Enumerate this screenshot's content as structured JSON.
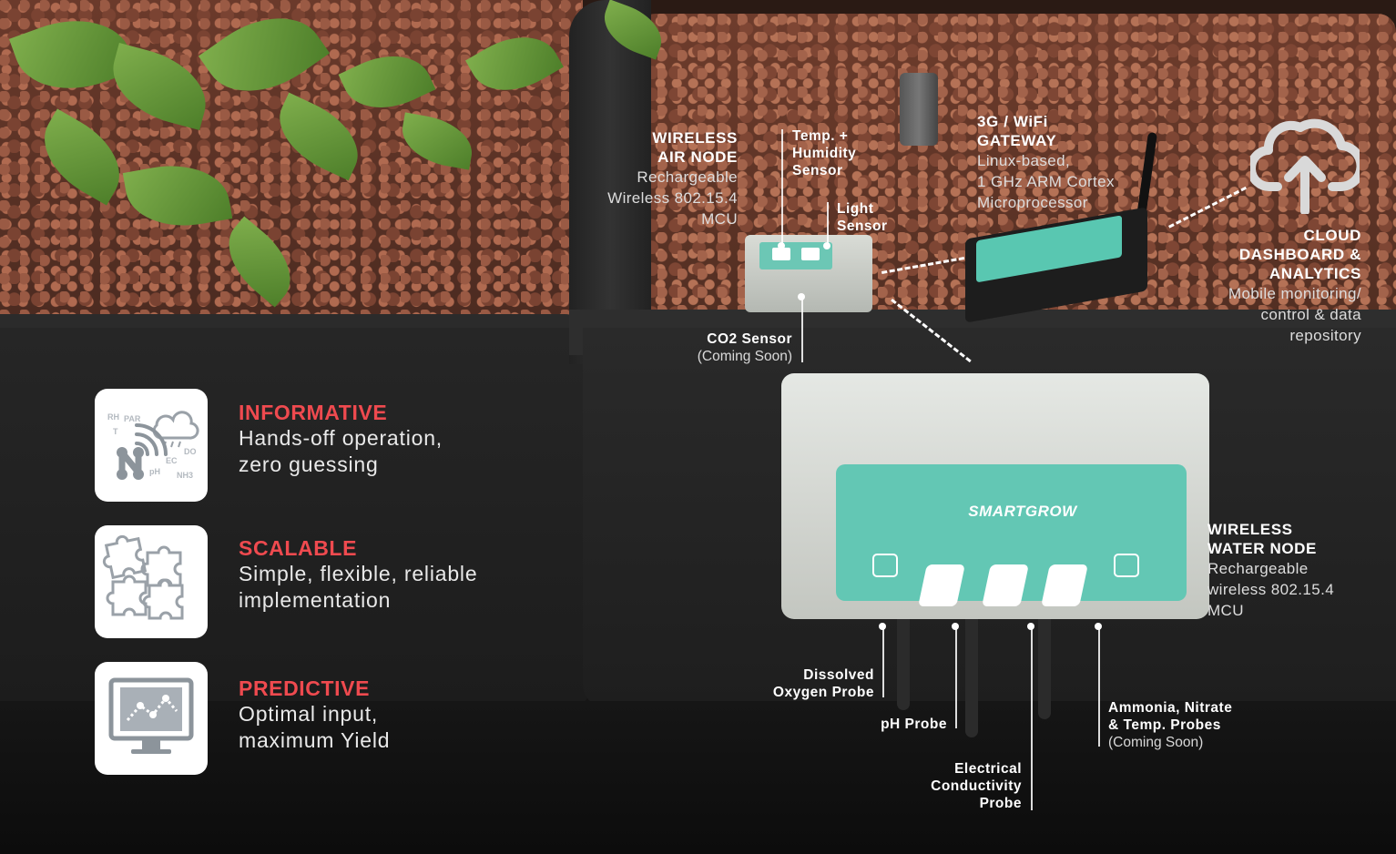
{
  "features": [
    {
      "title": "INFORMATIVE",
      "line1": "Hands-off operation,",
      "line2": "zero guessing",
      "icon": "sensor-network-icon",
      "icon_labels": [
        "RH",
        "PAR",
        "T",
        "DO",
        "EC",
        "pH",
        "NH3"
      ]
    },
    {
      "title": "SCALABLE",
      "line1": "Simple, flexible, reliable",
      "line2": "implementation",
      "icon": "puzzle-icon"
    },
    {
      "title": "PREDICTIVE",
      "line1": "Optimal input,",
      "line2": "maximum Yield",
      "icon": "monitor-chart-icon"
    }
  ],
  "air_node": {
    "title1": "WIRELESS",
    "title2": "AIR NODE",
    "line1": "Rechargeable",
    "line2": "Wireless 802.15.4",
    "line3": "MCU"
  },
  "temp_sensor": {
    "line1": "Temp. +",
    "line2": "Humidity",
    "line3": "Sensor"
  },
  "light_sensor": {
    "line1": "Light",
    "line2": "Sensor"
  },
  "co2_sensor": {
    "title": "CO2 Sensor",
    "note": "(Coming Soon)"
  },
  "gateway": {
    "title1": "3G / WiFi",
    "title2": "GATEWAY",
    "line1": "Linux-based,",
    "line2": "1 GHz ARM Cortex",
    "line3": "Microprocessor"
  },
  "cloud": {
    "title1": "CLOUD",
    "title2": "DASHBOARD &",
    "title3": "ANALYTICS",
    "line1": "Mobile monitoring/",
    "line2": "control & data",
    "line3": "repository",
    "icon": "cloud-upload-icon"
  },
  "water_node": {
    "title1": "WIRELESS",
    "title2": "WATER NODE",
    "line1": "Rechargeable",
    "line2": "wireless 802.15.4",
    "line3": "MCU",
    "brand": "SMARTGROW"
  },
  "probes": {
    "dissolved_oxygen": {
      "line1": "Dissolved",
      "line2": "Oxygen Probe"
    },
    "ph": {
      "line1": "pH Probe"
    },
    "ec": {
      "line1": "Electrical",
      "line2": "Conductivity",
      "line3": "Probe"
    },
    "ammonia": {
      "line1": "Ammonia, Nitrate",
      "line2": "& Temp. Probes",
      "note": "(Coming Soon)"
    }
  },
  "colors": {
    "accent": "#ef4a4f",
    "teal": "#63c7b4",
    "icon_gray": "#a9b0b7"
  }
}
